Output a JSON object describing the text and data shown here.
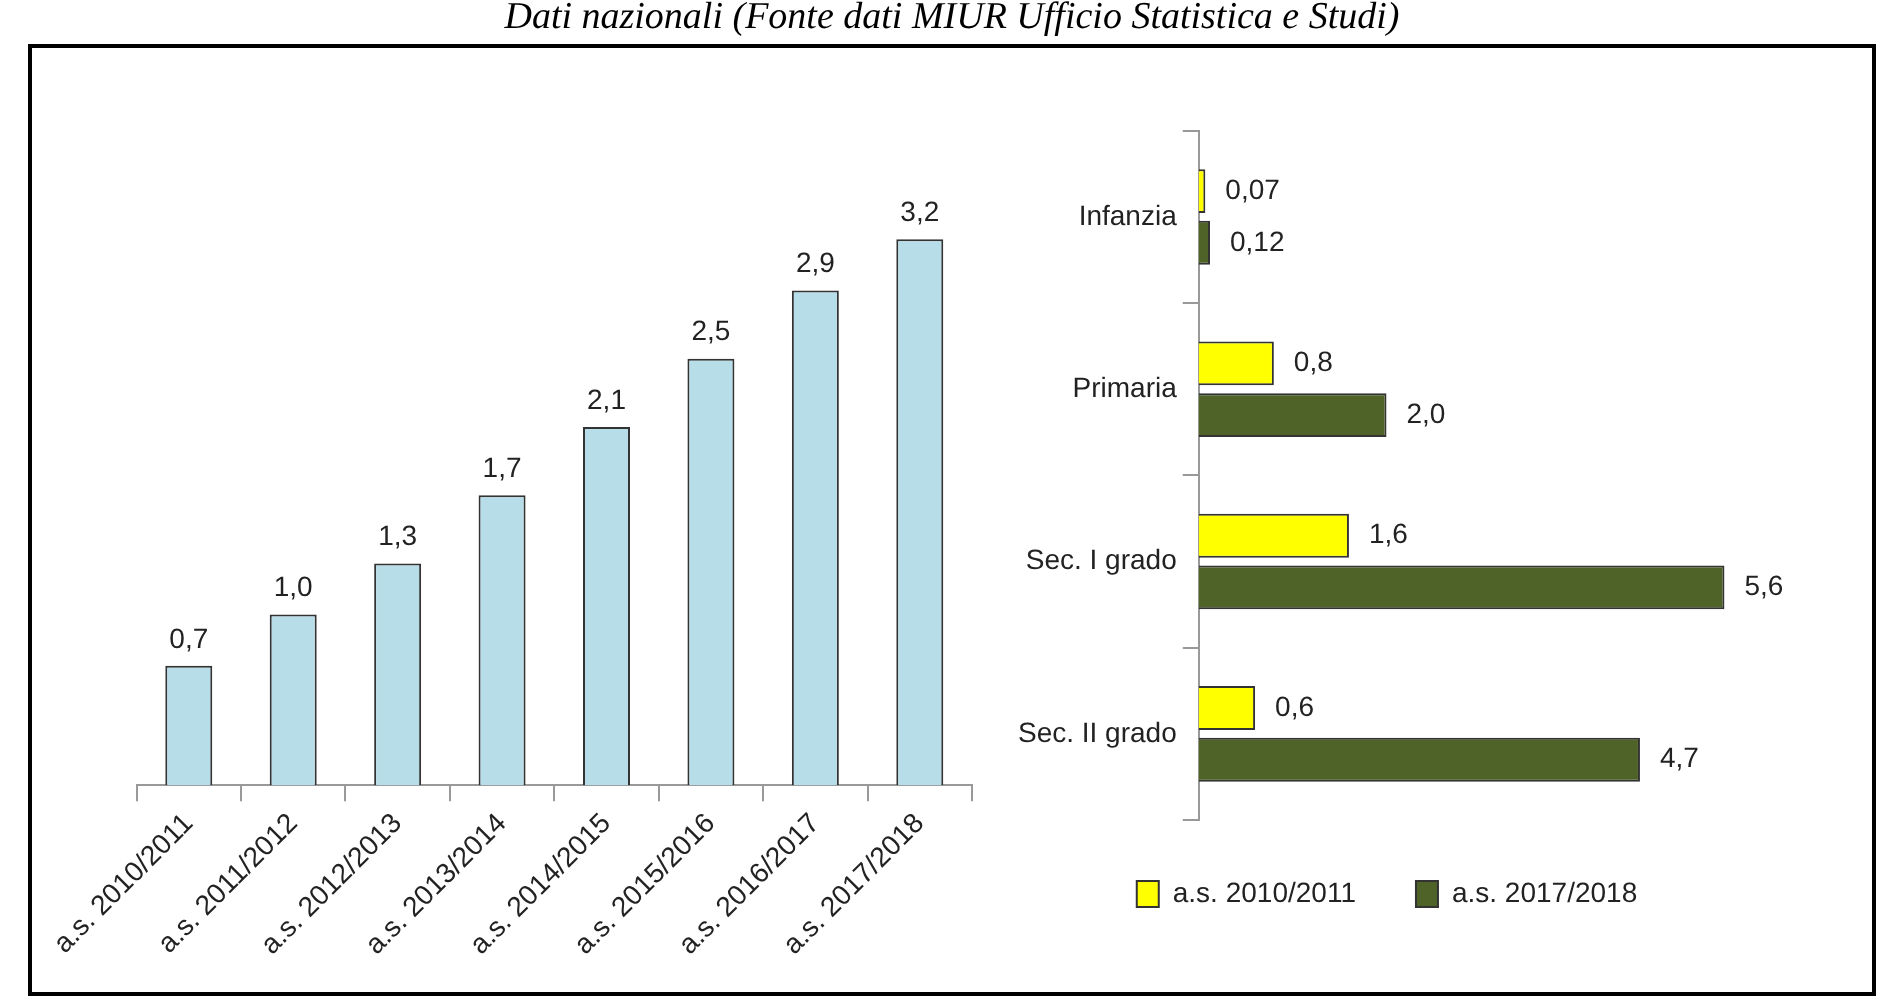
{
  "chart_data": [
    {
      "type": "bar",
      "title": "Dati nazionali (Fonte dati MIUR Ufficio Statistica e Studi)",
      "categories": [
        "a.s. 2010/2011",
        "a.s. 2011/2012",
        "a.s. 2012/2013",
        "a.s. 2013/2014",
        "a.s. 2014/2015",
        "a.s. 2015/2016",
        "a.s. 2016/2017",
        "a.s. 2017/2018"
      ],
      "values": [
        0.7,
        1.0,
        1.3,
        1.7,
        2.1,
        2.5,
        2.9,
        3.2
      ],
      "value_labels": [
        "0,7",
        "1,0",
        "1,3",
        "1,7",
        "2,1",
        "2,5",
        "2,9",
        "3,2"
      ],
      "color": "#b7dde8"
    },
    {
      "type": "bar",
      "orientation": "horizontal",
      "legend": "bottom",
      "categories": [
        "Infanzia",
        "Primaria",
        "Sec. I grado",
        "Sec. II grado"
      ],
      "series": [
        {
          "name": "a.s. 2010/2011",
          "color": "#ffff00",
          "values": [
            0.07,
            0.8,
            1.6,
            0.6
          ],
          "value_labels": [
            "0,07",
            "0,8",
            "1,6",
            "0,6"
          ]
        },
        {
          "name": "a.s. 2017/2018",
          "color": "#4f6228",
          "values": [
            0.12,
            2.0,
            5.6,
            4.7
          ],
          "value_labels": [
            "0,12",
            "2,0",
            "5,6",
            "4,7"
          ]
        }
      ]
    }
  ]
}
